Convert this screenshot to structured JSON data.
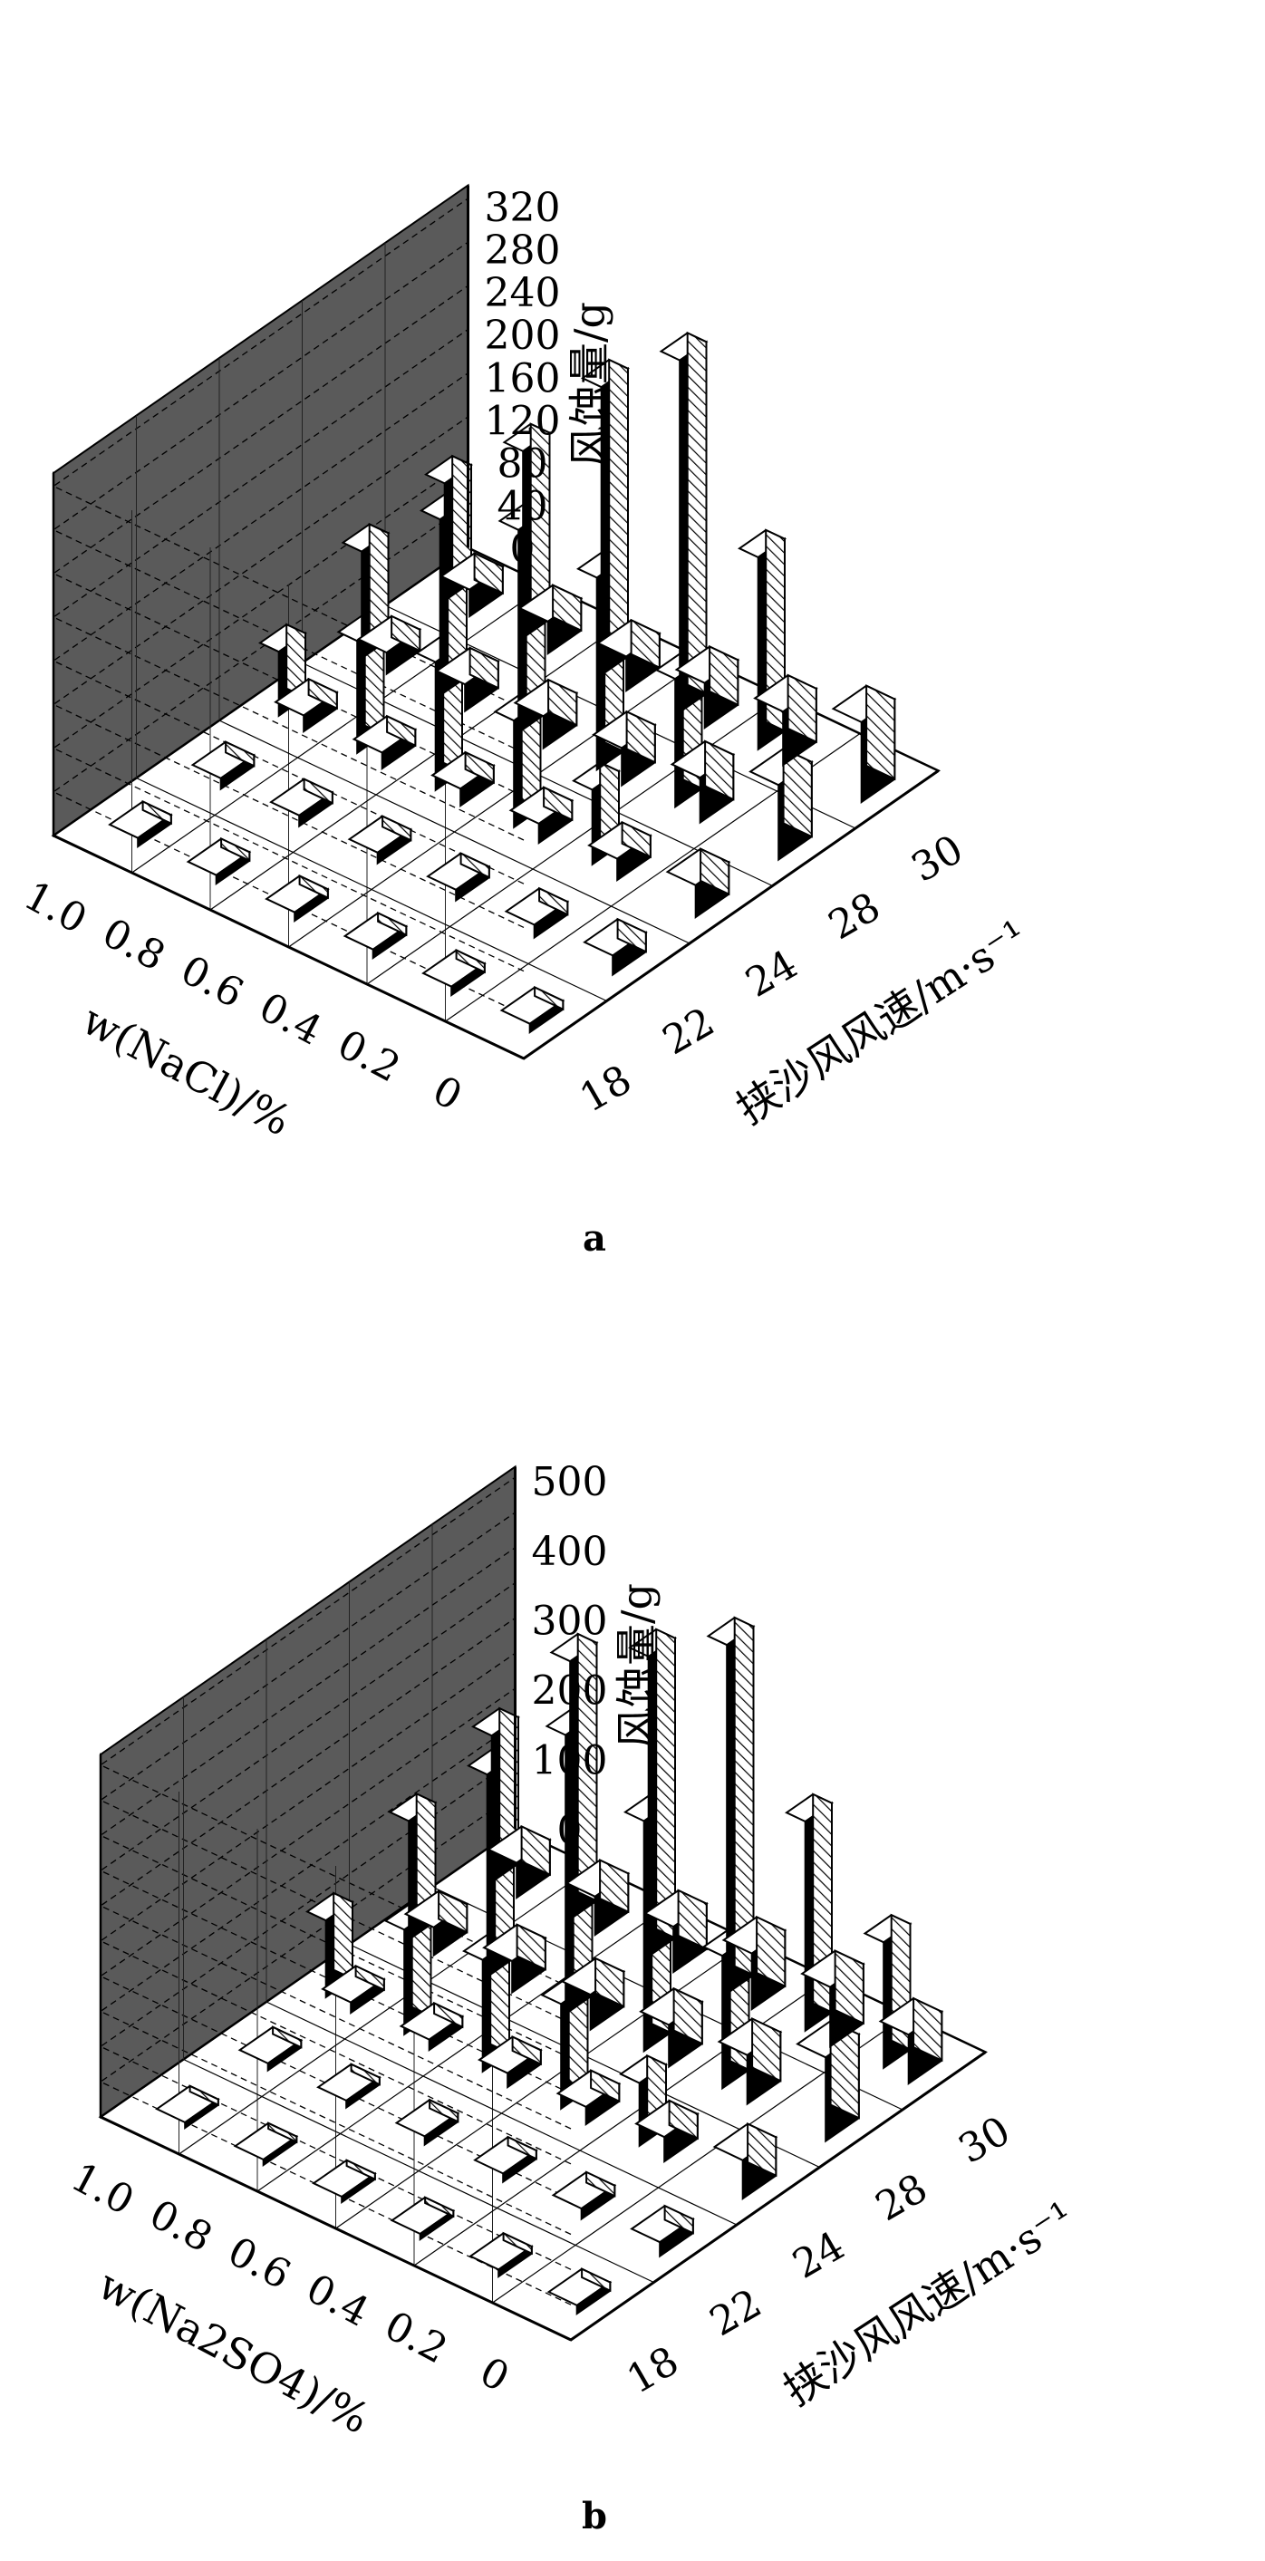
{
  "chart_data": [
    {
      "type": "bar3d",
      "panel_label": "a",
      "x_label": "挟沙风风速/m·s⁻¹",
      "x_categories": [
        "18",
        "22",
        "24",
        "28",
        "30"
      ],
      "y_label": "w(NaCl)/%",
      "y_categories": [
        "0",
        "0.2",
        "0.4",
        "0.6",
        "0.8",
        "1.0"
      ],
      "z_label": "风蚀量/g",
      "z_ticks": [
        "0",
        "40",
        "80",
        "120",
        "160",
        "200",
        "240",
        "280",
        "320"
      ],
      "zlim": [
        0,
        340
      ],
      "values": [
        [
          8,
          18,
          30,
          70,
          75
        ],
        [
          8,
          12,
          20,
          42,
          50
        ],
        [
          8,
          10,
          18,
          35,
          42
        ],
        [
          8,
          10,
          16,
          30,
          32
        ],
        [
          8,
          10,
          15,
          25,
          30
        ],
        [
          8,
          10,
          15,
          20,
          25
        ]
      ],
      "back_values": [
        [
          5,
          10,
          20,
          30,
          40
        ],
        [
          5,
          10,
          70,
          120,
          180
        ],
        [
          5,
          12,
          100,
          180,
          330
        ],
        [
          5,
          15,
          120,
          190,
          270
        ],
        [
          5,
          15,
          105,
          165,
          175
        ],
        [
          5,
          10,
          60,
          100,
          110
        ]
      ]
    },
    {
      "type": "bar3d",
      "panel_label": "b",
      "x_label": "挟沙风风速/m·s⁻¹",
      "x_categories": [
        "18",
        "22",
        "24",
        "28",
        "30"
      ],
      "y_label": "w(Na2SO4)/%",
      "y_categories": [
        "0",
        "0.2",
        "0.4",
        "0.6",
        "0.8",
        "1.0"
      ],
      "z_label": "风蚀量/g",
      "z_ticks": [
        "0",
        "100",
        "200",
        "300",
        "400",
        "500"
      ],
      "zlim": [
        0,
        520
      ],
      "values": [
        [
          12,
          20,
          55,
          120,
          70
        ],
        [
          10,
          15,
          35,
          70,
          85
        ],
        [
          8,
          12,
          25,
          60,
          80
        ],
        [
          8,
          12,
          20,
          50,
          65
        ],
        [
          8,
          10,
          15,
          45,
          55
        ],
        [
          8,
          10,
          15,
          40,
          50
        ]
      ],
      "back_values": [
        [
          5,
          10,
          25,
          60,
          180
        ],
        [
          5,
          10,
          90,
          190,
          300
        ],
        [
          5,
          12,
          150,
          330,
          500
        ],
        [
          5,
          12,
          160,
          400,
          430
        ],
        [
          5,
          12,
          150,
          290,
          370
        ],
        [
          5,
          10,
          110,
          170,
          210
        ]
      ]
    }
  ]
}
